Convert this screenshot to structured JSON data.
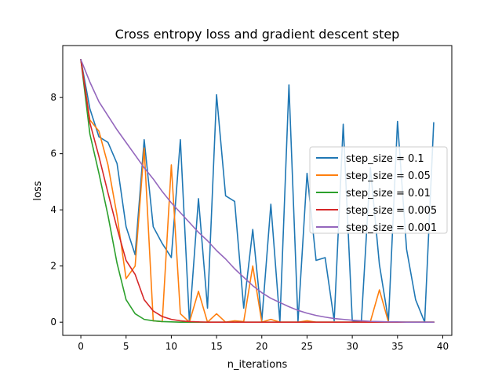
{
  "chart_data": {
    "type": "line",
    "title": "Cross entropy loss and gradient descent step",
    "xlabel": "n_iterations",
    "ylabel": "loss",
    "xlim": [
      -2,
      41
    ],
    "ylim": [
      -0.47,
      9.85
    ],
    "xticks": [
      0,
      5,
      10,
      15,
      20,
      25,
      30,
      35,
      40
    ],
    "yticks": [
      0,
      2,
      4,
      6,
      8
    ],
    "grid": false,
    "legend_position": "center-right",
    "x": [
      0,
      1,
      2,
      3,
      4,
      5,
      6,
      7,
      8,
      9,
      10,
      11,
      12,
      13,
      14,
      15,
      16,
      17,
      18,
      19,
      20,
      21,
      22,
      23,
      24,
      25,
      26,
      27,
      28,
      29,
      30,
      31,
      32,
      33,
      34,
      35,
      36,
      37,
      38,
      39
    ],
    "series": [
      {
        "name": "step_size = 0.1",
        "color": "#1f77b4",
        "values": [
          9.35,
          7.6,
          6.6,
          6.4,
          5.65,
          3.4,
          2.4,
          6.5,
          3.4,
          2.8,
          2.3,
          6.5,
          0.0,
          4.4,
          0.5,
          8.1,
          4.5,
          4.3,
          0.5,
          3.3,
          0.05,
          4.2,
          0.0,
          8.45,
          0.02,
          5.3,
          2.2,
          2.3,
          0.05,
          7.05,
          0.05,
          0.0,
          5.5,
          2.05,
          0.05,
          7.15,
          2.6,
          0.8,
          0.0,
          7.1
        ]
      },
      {
        "name": "step_size = 0.05",
        "color": "#ff7f0e",
        "values": [
          9.35,
          7.2,
          6.8,
          5.6,
          3.8,
          1.55,
          2.0,
          6.2,
          0.05,
          0.02,
          5.6,
          0.3,
          0.0,
          1.1,
          0.0,
          0.3,
          0.0,
          0.05,
          0.02,
          2.0,
          0.0,
          0.1,
          0.0,
          0.0,
          0.0,
          0.05,
          0.0,
          0.0,
          0.0,
          0.0,
          0.0,
          0.0,
          0.02,
          1.15,
          0.0,
          0.0,
          0.0,
          0.0,
          0.0,
          0.0
        ]
      },
      {
        "name": "step_size = 0.01",
        "color": "#2ca02c",
        "values": [
          9.35,
          6.7,
          5.3,
          3.8,
          2.1,
          0.8,
          0.3,
          0.1,
          0.05,
          0.02,
          0.01,
          0.0,
          0.0,
          0.0,
          0.0,
          0.0,
          0.0,
          0.0,
          0.0,
          0.0,
          0.0,
          0.0,
          0.0,
          0.0,
          0.0,
          0.0,
          0.0,
          0.0,
          0.0,
          0.0,
          0.0,
          0.0,
          0.0,
          0.0,
          0.0,
          0.0,
          0.0,
          0.0,
          0.0,
          0.0
        ]
      },
      {
        "name": "step_size = 0.005",
        "color": "#d62728",
        "values": [
          9.35,
          7.1,
          5.9,
          4.6,
          3.35,
          2.2,
          1.7,
          0.8,
          0.4,
          0.2,
          0.1,
          0.05,
          0.02,
          0.01,
          0.0,
          0.0,
          0.0,
          0.0,
          0.0,
          0.0,
          0.0,
          0.0,
          0.0,
          0.0,
          0.0,
          0.0,
          0.0,
          0.0,
          0.0,
          0.0,
          0.0,
          0.0,
          0.0,
          0.0,
          0.0,
          0.0,
          0.0,
          0.0,
          0.0,
          0.0
        ]
      },
      {
        "name": "step_size = 0.001",
        "color": "#9467bd",
        "values": [
          9.35,
          8.55,
          7.85,
          7.35,
          6.85,
          6.4,
          5.95,
          5.5,
          5.1,
          4.65,
          4.25,
          3.9,
          3.55,
          3.2,
          2.9,
          2.55,
          2.25,
          1.9,
          1.6,
          1.3,
          1.05,
          0.85,
          0.7,
          0.55,
          0.42,
          0.32,
          0.24,
          0.18,
          0.13,
          0.1,
          0.07,
          0.05,
          0.03,
          0.02,
          0.01,
          0.01,
          0.0,
          0.0,
          0.0,
          0.0
        ]
      }
    ]
  }
}
